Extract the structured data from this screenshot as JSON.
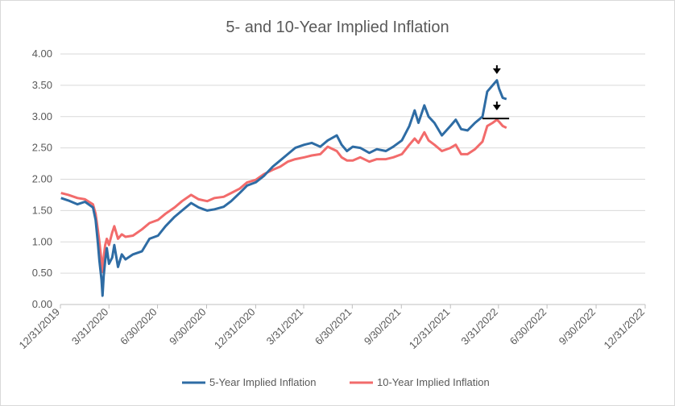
{
  "chart_data": {
    "type": "line",
    "title": "5- and 10-Year Implied Inflation",
    "xlabel": "",
    "ylabel": "",
    "ylim": [
      0,
      4
    ],
    "yticks": [
      "0.00",
      "0.50",
      "1.00",
      "1.50",
      "2.00",
      "2.50",
      "3.00",
      "3.50",
      "4.00"
    ],
    "xticks": [
      "12/31/2019",
      "3/31/2020",
      "6/30/2020",
      "9/30/2020",
      "12/31/2020",
      "3/31/2021",
      "6/30/2021",
      "9/30/2021",
      "12/31/2021",
      "3/31/2022",
      "6/30/2022",
      "9/30/2022",
      "12/31/2022"
    ],
    "grid": true,
    "legend_position": "bottom",
    "series": [
      {
        "name": "5-Year Implied Inflation",
        "color": "#2e6ca4",
        "points": [
          [
            "2020-01-01",
            1.7
          ],
          [
            "2020-01-15",
            1.66
          ],
          [
            "2020-02-01",
            1.6
          ],
          [
            "2020-02-15",
            1.64
          ],
          [
            "2020-03-01",
            1.55
          ],
          [
            "2020-03-06",
            1.35
          ],
          [
            "2020-03-10",
            1.0
          ],
          [
            "2020-03-13",
            0.7
          ],
          [
            "2020-03-17",
            0.4
          ],
          [
            "2020-03-19",
            0.14
          ],
          [
            "2020-03-21",
            0.45
          ],
          [
            "2020-03-24",
            0.7
          ],
          [
            "2020-03-27",
            0.9
          ],
          [
            "2020-03-31",
            0.65
          ],
          [
            "2020-04-06",
            0.75
          ],
          [
            "2020-04-10",
            0.95
          ],
          [
            "2020-04-17",
            0.6
          ],
          [
            "2020-04-24",
            0.8
          ],
          [
            "2020-05-01",
            0.72
          ],
          [
            "2020-05-15",
            0.8
          ],
          [
            "2020-06-01",
            0.85
          ],
          [
            "2020-06-15",
            1.05
          ],
          [
            "2020-07-01",
            1.1
          ],
          [
            "2020-07-15",
            1.25
          ],
          [
            "2020-08-01",
            1.4
          ],
          [
            "2020-08-15",
            1.5
          ],
          [
            "2020-09-01",
            1.62
          ],
          [
            "2020-09-15",
            1.55
          ],
          [
            "2020-10-01",
            1.5
          ],
          [
            "2020-10-15",
            1.52
          ],
          [
            "2020-11-01",
            1.56
          ],
          [
            "2020-11-15",
            1.65
          ],
          [
            "2020-12-01",
            1.78
          ],
          [
            "2020-12-15",
            1.9
          ],
          [
            "2020-12-31",
            1.95
          ],
          [
            "2021-01-15",
            2.05
          ],
          [
            "2021-02-01",
            2.2
          ],
          [
            "2021-02-15",
            2.3
          ],
          [
            "2021-03-01",
            2.4
          ],
          [
            "2021-03-15",
            2.5
          ],
          [
            "2021-04-01",
            2.55
          ],
          [
            "2021-04-15",
            2.58
          ],
          [
            "2021-05-01",
            2.52
          ],
          [
            "2021-05-15",
            2.62
          ],
          [
            "2021-06-01",
            2.7
          ],
          [
            "2021-06-10",
            2.55
          ],
          [
            "2021-06-20",
            2.45
          ],
          [
            "2021-07-01",
            2.52
          ],
          [
            "2021-07-15",
            2.5
          ],
          [
            "2021-08-01",
            2.42
          ],
          [
            "2021-08-15",
            2.48
          ],
          [
            "2021-09-01",
            2.45
          ],
          [
            "2021-09-15",
            2.52
          ],
          [
            "2021-10-01",
            2.62
          ],
          [
            "2021-10-15",
            2.85
          ],
          [
            "2021-10-25",
            3.1
          ],
          [
            "2021-11-01",
            2.9
          ],
          [
            "2021-11-12",
            3.18
          ],
          [
            "2021-11-20",
            3.0
          ],
          [
            "2021-12-01",
            2.9
          ],
          [
            "2021-12-15",
            2.7
          ],
          [
            "2021-12-31",
            2.85
          ],
          [
            "2022-01-10",
            2.95
          ],
          [
            "2022-01-20",
            2.8
          ],
          [
            "2022-02-01",
            2.78
          ],
          [
            "2022-02-15",
            2.9
          ],
          [
            "2022-03-01",
            3.0
          ],
          [
            "2022-03-10",
            3.4
          ],
          [
            "2022-03-20",
            3.5
          ],
          [
            "2022-03-28",
            3.58
          ],
          [
            "2022-04-01",
            3.45
          ],
          [
            "2022-04-08",
            3.3
          ],
          [
            "2022-04-15",
            3.28
          ]
        ]
      },
      {
        "name": "10-Year Implied Inflation",
        "color": "#f26b6b",
        "points": [
          [
            "2020-01-01",
            1.78
          ],
          [
            "2020-01-15",
            1.75
          ],
          [
            "2020-02-01",
            1.7
          ],
          [
            "2020-02-15",
            1.68
          ],
          [
            "2020-03-01",
            1.6
          ],
          [
            "2020-03-06",
            1.45
          ],
          [
            "2020-03-10",
            1.2
          ],
          [
            "2020-03-13",
            1.0
          ],
          [
            "2020-03-17",
            0.7
          ],
          [
            "2020-03-19",
            0.52
          ],
          [
            "2020-03-21",
            0.75
          ],
          [
            "2020-03-24",
            0.95
          ],
          [
            "2020-03-27",
            1.05
          ],
          [
            "2020-03-31",
            0.95
          ],
          [
            "2020-04-06",
            1.15
          ],
          [
            "2020-04-10",
            1.25
          ],
          [
            "2020-04-17",
            1.05
          ],
          [
            "2020-04-24",
            1.12
          ],
          [
            "2020-05-01",
            1.08
          ],
          [
            "2020-05-15",
            1.1
          ],
          [
            "2020-06-01",
            1.2
          ],
          [
            "2020-06-15",
            1.3
          ],
          [
            "2020-07-01",
            1.35
          ],
          [
            "2020-07-15",
            1.45
          ],
          [
            "2020-08-01",
            1.55
          ],
          [
            "2020-08-15",
            1.65
          ],
          [
            "2020-09-01",
            1.75
          ],
          [
            "2020-09-15",
            1.68
          ],
          [
            "2020-10-01",
            1.65
          ],
          [
            "2020-10-15",
            1.7
          ],
          [
            "2020-11-01",
            1.72
          ],
          [
            "2020-11-15",
            1.78
          ],
          [
            "2020-12-01",
            1.85
          ],
          [
            "2020-12-15",
            1.95
          ],
          [
            "2020-12-31",
            1.99
          ],
          [
            "2021-01-15",
            2.08
          ],
          [
            "2021-02-01",
            2.15
          ],
          [
            "2021-02-15",
            2.2
          ],
          [
            "2021-03-01",
            2.28
          ],
          [
            "2021-03-15",
            2.32
          ],
          [
            "2021-04-01",
            2.35
          ],
          [
            "2021-04-15",
            2.38
          ],
          [
            "2021-05-01",
            2.4
          ],
          [
            "2021-05-15",
            2.52
          ],
          [
            "2021-06-01",
            2.45
          ],
          [
            "2021-06-10",
            2.35
          ],
          [
            "2021-06-20",
            2.3
          ],
          [
            "2021-07-01",
            2.3
          ],
          [
            "2021-07-15",
            2.35
          ],
          [
            "2021-08-01",
            2.28
          ],
          [
            "2021-08-15",
            2.32
          ],
          [
            "2021-09-01",
            2.32
          ],
          [
            "2021-09-15",
            2.35
          ],
          [
            "2021-10-01",
            2.4
          ],
          [
            "2021-10-15",
            2.55
          ],
          [
            "2021-10-25",
            2.65
          ],
          [
            "2021-11-01",
            2.58
          ],
          [
            "2021-11-12",
            2.75
          ],
          [
            "2021-11-20",
            2.62
          ],
          [
            "2021-12-01",
            2.55
          ],
          [
            "2021-12-15",
            2.45
          ],
          [
            "2021-12-31",
            2.5
          ],
          [
            "2022-01-10",
            2.55
          ],
          [
            "2022-01-20",
            2.4
          ],
          [
            "2022-02-01",
            2.4
          ],
          [
            "2022-02-15",
            2.48
          ],
          [
            "2022-03-01",
            2.6
          ],
          [
            "2022-03-10",
            2.85
          ],
          [
            "2022-03-20",
            2.9
          ],
          [
            "2022-03-28",
            2.95
          ],
          [
            "2022-04-01",
            2.92
          ],
          [
            "2022-04-08",
            2.85
          ],
          [
            "2022-04-15",
            2.82
          ]
        ]
      }
    ],
    "annotations": [
      {
        "type": "arrow",
        "label": "",
        "at": [
          "2022-03-28",
          3.68
        ]
      },
      {
        "type": "arrow",
        "label": "",
        "at": [
          "2022-03-28",
          3.1
        ]
      },
      {
        "type": "hline",
        "y": 2.97,
        "x_from": "2022-03-01",
        "x_to": "2022-04-20"
      }
    ]
  }
}
